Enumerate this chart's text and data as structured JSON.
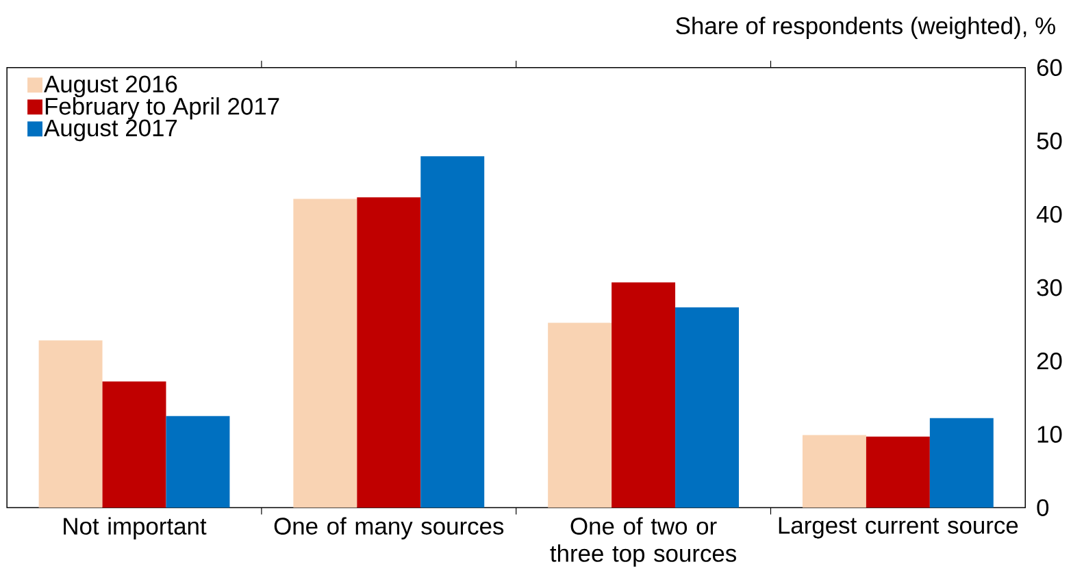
{
  "chart_data": {
    "type": "bar",
    "ylabel": "Share of respondents (weighted), %",
    "categories": [
      "Not important",
      "One of many sources",
      "One of two or three top sources",
      "Largest current source"
    ],
    "series": [
      {
        "name": "August 2016",
        "color": "#f9d3b3",
        "values": [
          22.8,
          42.1,
          25.2,
          9.9
        ]
      },
      {
        "name": "February to April 2017",
        "color": "#c00000",
        "values": [
          17.2,
          42.3,
          30.7,
          9.7
        ]
      },
      {
        "name": "August 2017",
        "color": "#0070c0",
        "values": [
          12.5,
          47.9,
          27.3,
          12.2
        ]
      }
    ],
    "ylim": [
      0,
      60
    ],
    "yticks": [
      0,
      10,
      20,
      30,
      40,
      50,
      60
    ],
    "legend": "top left",
    "grid": false
  }
}
